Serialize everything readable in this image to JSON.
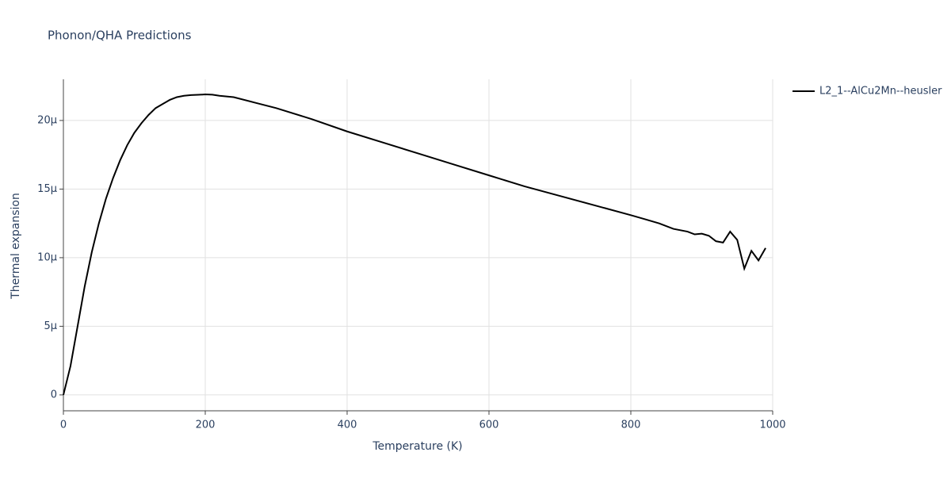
{
  "chart_data": {
    "type": "line",
    "title": "Phonon/QHA Predictions",
    "x_label": "Temperature (K)",
    "y_label": "Thermal expansion",
    "xlim": [
      0,
      1000
    ],
    "xticks": [
      0,
      200,
      400,
      600,
      800,
      1000
    ],
    "ylim": [
      -1.16e-06,
      2.3e-05
    ],
    "yticks": [
      0,
      {
        "value": 5e-06,
        "label": "5μ"
      },
      {
        "value": 1e-05,
        "label": "10μ"
      },
      {
        "value": 1.5e-05,
        "label": "15μ"
      },
      {
        "value": 2e-05,
        "label": "20μ"
      }
    ],
    "grid": true,
    "legend": "top-right",
    "x": [
      0,
      10,
      20,
      30,
      40,
      50,
      60,
      70,
      80,
      90,
      100,
      110,
      120,
      130,
      140,
      150,
      160,
      170,
      180,
      190,
      200,
      210,
      220,
      240,
      270,
      300,
      350,
      400,
      450,
      500,
      550,
      600,
      650,
      700,
      750,
      800,
      820,
      840,
      860,
      880,
      890,
      900,
      910,
      920,
      930,
      940,
      950,
      960,
      970,
      980,
      990
    ],
    "series": [
      {
        "name": "L2_1--AlCu2Mn--heusler",
        "color": "#000000",
        "values": [
          0,
          2.1e-06,
          5e-06,
          7.9e-06,
          1.04e-05,
          1.25e-05,
          1.43e-05,
          1.58e-05,
          1.71e-05,
          1.82e-05,
          1.91e-05,
          1.98e-05,
          2.04e-05,
          2.09e-05,
          2.12e-05,
          2.15e-05,
          2.17e-05,
          2.18e-05,
          2.185e-05,
          2.187e-05,
          2.19e-05,
          2.188e-05,
          2.18e-05,
          2.17e-05,
          2.13e-05,
          2.09e-05,
          2.01e-05,
          1.92e-05,
          1.84e-05,
          1.76e-05,
          1.68e-05,
          1.6e-05,
          1.52e-05,
          1.45e-05,
          1.38e-05,
          1.31e-05,
          1.28e-05,
          1.25e-05,
          1.21e-05,
          1.19e-05,
          1.17e-05,
          1.175e-05,
          1.16e-05,
          1.12e-05,
          1.11e-05,
          1.19e-05,
          1.13e-05,
          9.2e-06,
          1.05e-05,
          9.8e-06,
          1.07e-05
        ]
      }
    ]
  }
}
